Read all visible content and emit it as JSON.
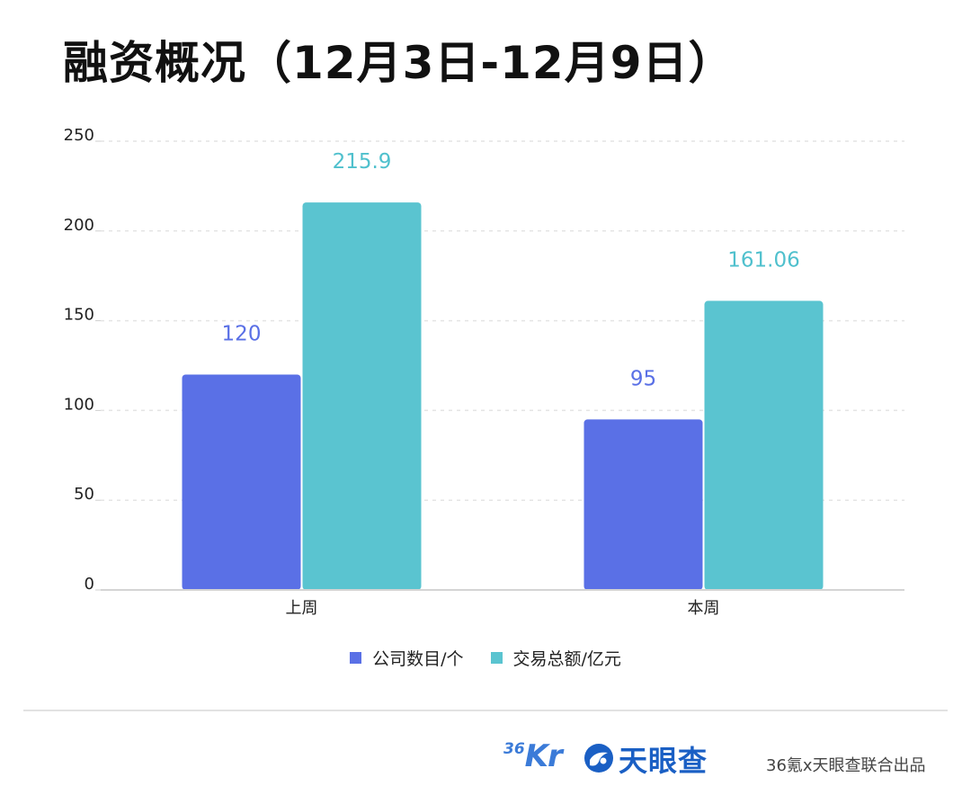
{
  "title": "融资概况（12月3日-12月9日）",
  "chart_data": {
    "type": "bar",
    "categories": [
      "上周",
      "本周"
    ],
    "series": [
      {
        "name": "公司数目/个",
        "values": [
          120,
          95
        ],
        "color": "#5a70e6",
        "label_color": "#5a70e6"
      },
      {
        "name": "交易总额/亿元",
        "values": [
          215.9,
          161.06
        ],
        "color": "#5ac4d0",
        "label_color": "#4fc0cd"
      }
    ],
    "data_labels": [
      [
        "120",
        "95"
      ],
      [
        "215.9",
        "161.06"
      ]
    ],
    "yticks": [
      "0",
      "50",
      "100",
      "150",
      "200",
      "250"
    ],
    "ylim": [
      0,
      250
    ],
    "grid": true,
    "legend": "bottom-center"
  },
  "footer": {
    "logo_36kr_num": "36",
    "logo_36kr_text": "Kr",
    "logo_tyc_text": "天眼查",
    "credit": "36氪x天眼查联合出品"
  },
  "colors": {
    "accent_blue": "#3b7bd8",
    "tyc_blue": "#1a5fc4"
  }
}
